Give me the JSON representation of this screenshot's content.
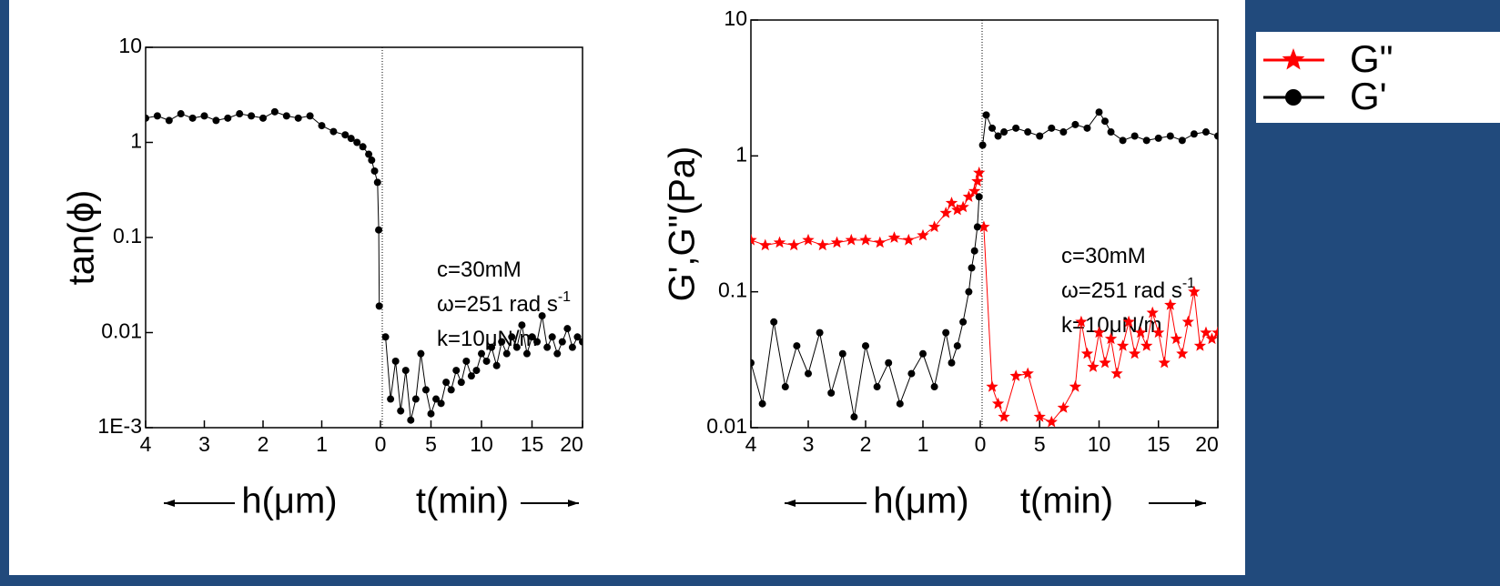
{
  "chart_data": [
    {
      "type": "line",
      "ylabel": "tan(ϕ)",
      "annotations": [
        {
          "text": "c=30mM"
        },
        {
          "text": "ω=251 rad s",
          "sup": "-1"
        },
        {
          "text": "k=10μN/m"
        }
      ],
      "log_y": true,
      "ylim": [
        0.001,
        10
      ],
      "yticks": [
        {
          "value": 0.001,
          "label": "1E-3"
        },
        0.01,
        0.1,
        1,
        10
      ],
      "h_axis": {
        "label": "h(μm)",
        "lim": [
          4,
          0
        ],
        "ticks": [
          4,
          3,
          2,
          1,
          0
        ]
      },
      "t_axis": {
        "label": "t(min)",
        "lim": [
          0,
          20
        ],
        "ticks": [
          5,
          10,
          15,
          20
        ]
      },
      "series": [
        {
          "color": "#000000",
          "marker": "circle",
          "h": {
            "x": [
              4,
              3.8,
              3.6,
              3.4,
              3.2,
              3.0,
              2.8,
              2.6,
              2.4,
              2.2,
              2.0,
              1.8,
              1.6,
              1.4,
              1.2,
              1.0,
              0.8,
              0.6,
              0.5,
              0.4,
              0.3,
              0.2,
              0.15,
              0.1,
              0.05,
              0.03,
              0.02
            ],
            "values": [
              1.8,
              1.9,
              1.7,
              2.0,
              1.8,
              1.9,
              1.7,
              1.8,
              2.0,
              1.9,
              1.8,
              2.1,
              1.9,
              1.8,
              1.9,
              1.5,
              1.3,
              1.2,
              1.1,
              1.0,
              0.9,
              0.75,
              0.65,
              0.5,
              0.38,
              0.12,
              0.019
            ]
          },
          "t": {
            "x": [
              0.5,
              1,
              1.5,
              2,
              2.5,
              3,
              3.5,
              4,
              4.5,
              5,
              5.5,
              6,
              6.5,
              7,
              7.5,
              8,
              8.5,
              9,
              9.5,
              10,
              10.5,
              11,
              11.5,
              12,
              12.5,
              13,
              13.5,
              14,
              14.5,
              15,
              15.5,
              16,
              16.5,
              17,
              17.5,
              18,
              18.5,
              19,
              19.5,
              20
            ],
            "values": [
              0.009,
              0.002,
              0.005,
              0.0015,
              0.004,
              0.0012,
              0.002,
              0.006,
              0.0025,
              0.0014,
              0.002,
              0.0018,
              0.003,
              0.0025,
              0.004,
              0.003,
              0.005,
              0.0035,
              0.004,
              0.006,
              0.005,
              0.007,
              0.0045,
              0.008,
              0.006,
              0.009,
              0.007,
              0.012,
              0.006,
              0.009,
              0.008,
              0.015,
              0.007,
              0.009,
              0.006,
              0.008,
              0.011,
              0.007,
              0.009,
              0.008
            ]
          }
        }
      ]
    },
    {
      "type": "line",
      "ylabel": "G',G\"(Pa)",
      "annotations": [
        {
          "text": "c=30mM"
        },
        {
          "text": "ω=251 rad s",
          "sup": "-1"
        },
        {
          "text": "k=10μN/m"
        }
      ],
      "log_y": true,
      "ylim": [
        0.01,
        10
      ],
      "yticks": [
        0.01,
        0.1,
        1,
        10
      ],
      "h_axis": {
        "label": "h(μm)",
        "lim": [
          4,
          0
        ],
        "ticks": [
          4,
          3,
          2,
          1,
          0
        ]
      },
      "t_axis": {
        "label": "t(min)",
        "lim": [
          0,
          20
        ],
        "ticks": [
          5,
          10,
          15,
          20
        ]
      },
      "legend": "outside-top-right",
      "series": [
        {
          "name": "G\"",
          "color": "#ff0000",
          "marker": "star",
          "h": {
            "x": [
              4,
              3.75,
              3.5,
              3.25,
              3,
              2.75,
              2.5,
              2.25,
              2,
              1.75,
              1.5,
              1.25,
              1,
              0.8,
              0.6,
              0.5,
              0.4,
              0.3,
              0.2,
              0.1,
              0.05,
              0.02
            ],
            "values": [
              0.24,
              0.22,
              0.23,
              0.22,
              0.24,
              0.22,
              0.23,
              0.24,
              0.24,
              0.23,
              0.25,
              0.24,
              0.26,
              0.3,
              0.38,
              0.45,
              0.4,
              0.42,
              0.5,
              0.55,
              0.65,
              0.75
            ]
          },
          "t": {
            "x": [
              0.3,
              1,
              1.5,
              2,
              3,
              4,
              5,
              6,
              7,
              8,
              8.5,
              9,
              9.5,
              10,
              10.5,
              11,
              11.5,
              12,
              12.5,
              13,
              13.5,
              14,
              14.5,
              15,
              15.5,
              16,
              16.5,
              17,
              17.5,
              18,
              18.5,
              19,
              19.5,
              20
            ],
            "values": [
              0.3,
              0.02,
              0.015,
              0.012,
              0.024,
              0.025,
              0.012,
              0.011,
              0.014,
              0.02,
              0.06,
              0.035,
              0.028,
              0.05,
              0.03,
              0.045,
              0.025,
              0.04,
              0.06,
              0.035,
              0.05,
              0.04,
              0.07,
              0.05,
              0.03,
              0.08,
              0.045,
              0.035,
              0.06,
              0.1,
              0.04,
              0.05,
              0.045,
              0.05
            ]
          }
        },
        {
          "name": "G'",
          "color": "#000000",
          "marker": "circle",
          "h": {
            "x": [
              4,
              3.8,
              3.6,
              3.4,
              3.2,
              3,
              2.8,
              2.6,
              2.4,
              2.2,
              2,
              1.8,
              1.6,
              1.4,
              1.2,
              1,
              0.8,
              0.6,
              0.5,
              0.4,
              0.3,
              0.2,
              0.15,
              0.1,
              0.05,
              0.02
            ],
            "values": [
              0.03,
              0.015,
              0.06,
              0.02,
              0.04,
              0.025,
              0.05,
              0.018,
              0.035,
              0.012,
              0.04,
              0.02,
              0.03,
              0.015,
              0.025,
              0.035,
              0.02,
              0.05,
              0.03,
              0.04,
              0.06,
              0.1,
              0.15,
              0.2,
              0.3,
              0.5
            ]
          },
          "t": {
            "x": [
              0.2,
              0.5,
              1,
              1.5,
              2,
              3,
              4,
              5,
              6,
              7,
              8,
              9,
              10,
              10.5,
              11,
              12,
              13,
              14,
              15,
              16,
              17,
              18,
              19,
              20
            ],
            "values": [
              1.2,
              2.0,
              1.6,
              1.4,
              1.5,
              1.6,
              1.5,
              1.4,
              1.6,
              1.5,
              1.7,
              1.6,
              2.1,
              1.8,
              1.5,
              1.3,
              1.4,
              1.3,
              1.35,
              1.4,
              1.3,
              1.45,
              1.5,
              1.4
            ]
          }
        }
      ]
    }
  ]
}
